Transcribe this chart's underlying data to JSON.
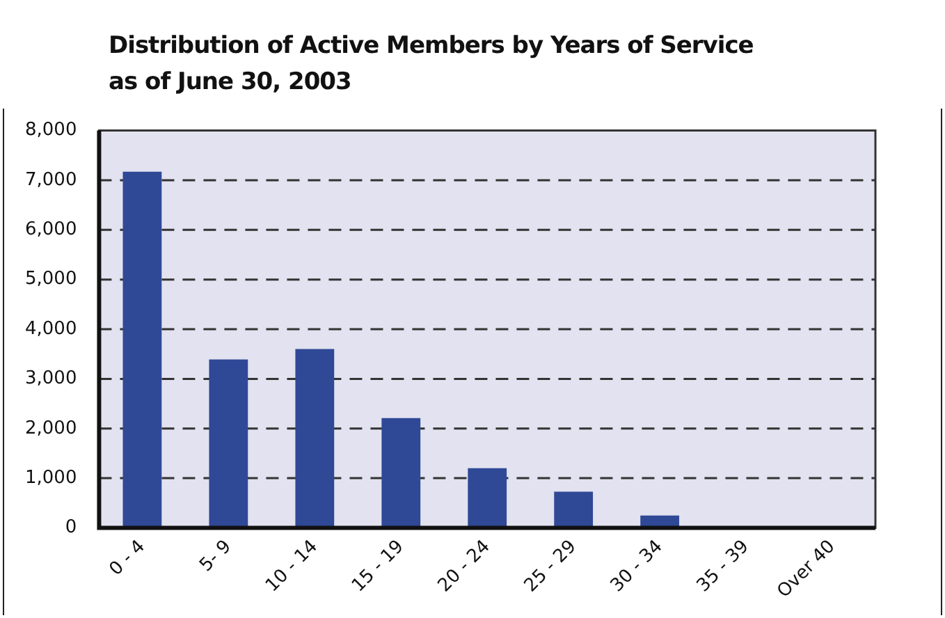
{
  "chart_data": {
    "type": "bar",
    "title": "Distribution of Active Members by Years of Service\nas of June 30, 2003",
    "categories": [
      "0 - 4",
      "5- 9",
      "10 - 14",
      "15 - 19",
      "20 - 24",
      "25 - 29",
      "30 - 34",
      "35 - 39",
      "Over 40"
    ],
    "values": [
      7170,
      3390,
      3600,
      2210,
      1200,
      730,
      250,
      0,
      0
    ],
    "color": "#2f4996",
    "ylim": [
      0,
      8000
    ],
    "yticks": [
      {
        "value": 0,
        "label": "0"
      },
      {
        "value": 1000,
        "label": "1,000"
      },
      {
        "value": 2000,
        "label": "2,000"
      },
      {
        "value": 3000,
        "label": "3,000"
      },
      {
        "value": 4000,
        "label": "4,000"
      },
      {
        "value": 5000,
        "label": "5,000"
      },
      {
        "value": 6000,
        "label": "6,000"
      },
      {
        "value": 7000,
        "label": "7,000"
      },
      {
        "value": 8000,
        "label": "8,000"
      }
    ],
    "grid": "y",
    "legend": false
  }
}
